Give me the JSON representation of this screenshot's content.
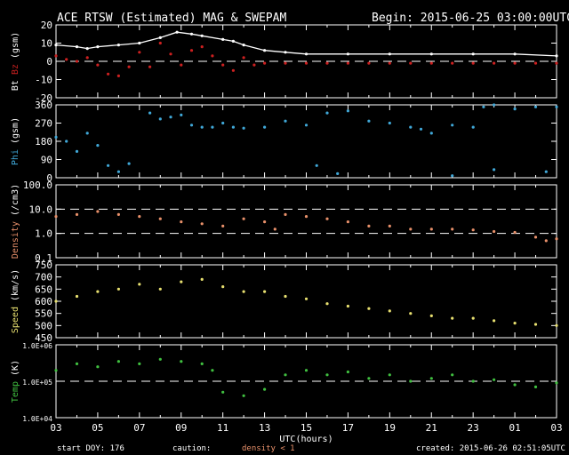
{
  "header": {
    "title": "ACE RTSW (Estimated) MAG & SWEPAM",
    "begin": "Begin: 2015-06-25 03:00:00UTC"
  },
  "footer": {
    "start_doy": "start DOY: 176",
    "caution_label": "caution:",
    "caution_text": "density < 1",
    "created": "created: 2015-06-26 02:51:05UTC"
  },
  "colors": {
    "background": "#000000",
    "axes": "#ffffff",
    "bt": "#ffffff",
    "bz": "#cc2020",
    "phi": "#40a8d8",
    "density": "#e8906a",
    "speed": "#e8e070",
    "temp": "#40c040",
    "caution": "#e8906a"
  },
  "chart_data": {
    "type": "scatter",
    "xlabel": "UTC(hours)",
    "x_ticks": [
      "03",
      "05",
      "07",
      "09",
      "11",
      "13",
      "15",
      "17",
      "19",
      "21",
      "23",
      "01",
      "03"
    ],
    "x_range_hours": [
      0,
      24
    ],
    "panels": [
      {
        "id": "mag",
        "ylabel_parts": [
          {
            "text": "Bt",
            "color": "#ffffff"
          },
          {
            "text": " ",
            "color": "#ffffff"
          },
          {
            "text": "Bz",
            "color": "#cc2020"
          },
          {
            "text": " (gsm)",
            "color": "#ffffff"
          }
        ],
        "scale": "linear",
        "ylim": [
          -20,
          20
        ],
        "ticks": [
          "20",
          "10",
          "0",
          "-10",
          "-20"
        ],
        "tick_values": [
          20,
          10,
          0,
          -10,
          -20
        ],
        "dashed_lines": [
          0
        ],
        "series": [
          {
            "name": "Bt",
            "color": "#ffffff",
            "style": "line",
            "points": [
              [
                0,
                9
              ],
              [
                1,
                8
              ],
              [
                1.5,
                7
              ],
              [
                2,
                8
              ],
              [
                3,
                9
              ],
              [
                4,
                10
              ],
              [
                5,
                13
              ],
              [
                5.8,
                16
              ],
              [
                6.5,
                15
              ],
              [
                7,
                14
              ],
              [
                8,
                12
              ],
              [
                8.5,
                11
              ],
              [
                9,
                9
              ],
              [
                10,
                6
              ],
              [
                11,
                5
              ],
              [
                12,
                4
              ],
              [
                14,
                4
              ],
              [
                16,
                4
              ],
              [
                18,
                4
              ],
              [
                20,
                4
              ],
              [
                22,
                4
              ],
              [
                24,
                3
              ]
            ]
          },
          {
            "name": "Bz",
            "color": "#cc2020",
            "style": "scatter",
            "points": [
              [
                0,
                3
              ],
              [
                0.5,
                1
              ],
              [
                1,
                0
              ],
              [
                1.5,
                2
              ],
              [
                2,
                -2
              ],
              [
                2.5,
                -7
              ],
              [
                3,
                -8
              ],
              [
                3.5,
                -3
              ],
              [
                4,
                5
              ],
              [
                4.5,
                -3
              ],
              [
                5,
                10
              ],
              [
                5.5,
                4
              ],
              [
                6,
                -2
              ],
              [
                6.5,
                6
              ],
              [
                7,
                8
              ],
              [
                7.5,
                3
              ],
              [
                8,
                -2
              ],
              [
                8.5,
                -5
              ],
              [
                9,
                2
              ],
              [
                9.5,
                -2
              ],
              [
                10,
                -1
              ],
              [
                11,
                -1
              ],
              [
                12,
                -1
              ],
              [
                13,
                -1
              ],
              [
                14,
                -1
              ],
              [
                15,
                -1
              ],
              [
                16,
                -1
              ],
              [
                17,
                -1
              ],
              [
                18,
                -1
              ],
              [
                19,
                -1
              ],
              [
                20,
                -1
              ],
              [
                21,
                -1
              ],
              [
                22,
                -1
              ],
              [
                23,
                -1
              ],
              [
                24,
                -1
              ]
            ]
          }
        ]
      },
      {
        "id": "phi",
        "ylabel_parts": [
          {
            "text": "Phi",
            "color": "#40a8d8"
          },
          {
            "text": " (gsm)",
            "color": "#ffffff"
          }
        ],
        "scale": "linear",
        "ylim": [
          0,
          360
        ],
        "ticks": [
          "360",
          "270",
          "180",
          "90",
          "0"
        ],
        "tick_values": [
          360,
          270,
          180,
          90,
          0
        ],
        "dashed_lines": [],
        "series": [
          {
            "name": "Phi",
            "color": "#40a8d8",
            "style": "scatter",
            "points": [
              [
                0,
                200
              ],
              [
                0.5,
                180
              ],
              [
                1,
                130
              ],
              [
                1.5,
                220
              ],
              [
                2,
                160
              ],
              [
                2.5,
                60
              ],
              [
                3,
                30
              ],
              [
                3.5,
                70
              ],
              [
                4.5,
                320
              ],
              [
                5,
                290
              ],
              [
                5.5,
                300
              ],
              [
                6,
                310
              ],
              [
                6.5,
                260
              ],
              [
                7,
                250
              ],
              [
                7.5,
                250
              ],
              [
                8,
                270
              ],
              [
                8.5,
                250
              ],
              [
                9,
                245
              ],
              [
                10,
                250
              ],
              [
                11,
                280
              ],
              [
                12,
                260
              ],
              [
                13,
                320
              ],
              [
                14,
                330
              ],
              [
                15,
                280
              ],
              [
                16,
                270
              ],
              [
                17,
                250
              ],
              [
                17.5,
                240
              ],
              [
                18,
                220
              ],
              [
                19,
                260
              ],
              [
                20,
                250
              ],
              [
                20.5,
                350
              ],
              [
                21,
                360
              ],
              [
                22,
                340
              ],
              [
                23,
                350
              ],
              [
                24,
                350
              ],
              [
                12.5,
                60
              ],
              [
                13.5,
                20
              ],
              [
                19,
                10
              ],
              [
                21,
                40
              ],
              [
                23.5,
                30
              ]
            ]
          }
        ]
      },
      {
        "id": "density",
        "ylabel_parts": [
          {
            "text": "Density",
            "color": "#e8906a"
          },
          {
            "text": " (/cm3)",
            "color": "#ffffff"
          }
        ],
        "scale": "log",
        "ylim": [
          0.1,
          100
        ],
        "ticks": [
          "100.0",
          "10.0",
          "1.0",
          "0.1"
        ],
        "tick_values": [
          100,
          10,
          1,
          0.1
        ],
        "dashed_lines": [
          10,
          1
        ],
        "series": [
          {
            "name": "Density",
            "color": "#e8906a",
            "style": "scatter",
            "points": [
              [
                0,
                5
              ],
              [
                1,
                6
              ],
              [
                2,
                8
              ],
              [
                3,
                6
              ],
              [
                4,
                5
              ],
              [
                5,
                4
              ],
              [
                6,
                3
              ],
              [
                7,
                2.5
              ],
              [
                8,
                2
              ],
              [
                9,
                4
              ],
              [
                10,
                3
              ],
              [
                10.5,
                1.5
              ],
              [
                11,
                6
              ],
              [
                12,
                5
              ],
              [
                13,
                4
              ],
              [
                14,
                3
              ],
              [
                15,
                2
              ],
              [
                16,
                2
              ],
              [
                17,
                1.5
              ],
              [
                18,
                1.5
              ],
              [
                19,
                1.5
              ],
              [
                20,
                1.4
              ],
              [
                21,
                1.2
              ],
              [
                22,
                1.1
              ],
              [
                23,
                0.7
              ],
              [
                23.5,
                0.5
              ],
              [
                24,
                0.6
              ]
            ]
          }
        ]
      },
      {
        "id": "speed",
        "ylabel_parts": [
          {
            "text": "Speed",
            "color": "#e8e070"
          },
          {
            "text": " (km/s)",
            "color": "#ffffff"
          }
        ],
        "scale": "linear",
        "ylim": [
          450,
          750
        ],
        "ticks": [
          "750",
          "700",
          "650",
          "600",
          "550",
          "500",
          "450"
        ],
        "tick_values": [
          750,
          700,
          650,
          600,
          550,
          500,
          450
        ],
        "dashed_lines": [],
        "series": [
          {
            "name": "Speed",
            "color": "#e8e070",
            "style": "scatter",
            "points": [
              [
                0,
                600
              ],
              [
                1,
                620
              ],
              [
                2,
                640
              ],
              [
                3,
                650
              ],
              [
                4,
                670
              ],
              [
                5,
                650
              ],
              [
                6,
                680
              ],
              [
                7,
                690
              ],
              [
                8,
                660
              ],
              [
                9,
                640
              ],
              [
                10,
                640
              ],
              [
                11,
                620
              ],
              [
                12,
                610
              ],
              [
                13,
                590
              ],
              [
                14,
                580
              ],
              [
                15,
                570
              ],
              [
                16,
                560
              ],
              [
                17,
                550
              ],
              [
                18,
                540
              ],
              [
                19,
                530
              ],
              [
                20,
                530
              ],
              [
                21,
                520
              ],
              [
                22,
                510
              ],
              [
                23,
                505
              ],
              [
                24,
                500
              ]
            ]
          }
        ]
      },
      {
        "id": "temp",
        "ylabel_parts": [
          {
            "text": "Temp",
            "color": "#40c040"
          },
          {
            "text": " (K)",
            "color": "#ffffff"
          }
        ],
        "scale": "log",
        "ylim": [
          10000,
          1000000
        ],
        "ticks": [
          "1.0E+06",
          "1.0E+05",
          "1.0E+04"
        ],
        "tick_values": [
          1000000,
          100000,
          10000
        ],
        "dashed_lines": [
          100000
        ],
        "series": [
          {
            "name": "Temp",
            "color": "#40c040",
            "style": "scatter",
            "points": [
              [
                0,
                200000
              ],
              [
                1,
                300000
              ],
              [
                2,
                250000
              ],
              [
                3,
                350000
              ],
              [
                4,
                300000
              ],
              [
                5,
                400000
              ],
              [
                6,
                350000
              ],
              [
                7,
                300000
              ],
              [
                7.5,
                200000
              ],
              [
                8,
                50000
              ],
              [
                9,
                40000
              ],
              [
                10,
                60000
              ],
              [
                11,
                150000
              ],
              [
                12,
                200000
              ],
              [
                13,
                150000
              ],
              [
                14,
                180000
              ],
              [
                15,
                120000
              ],
              [
                16,
                150000
              ],
              [
                17,
                100000
              ],
              [
                18,
                120000
              ],
              [
                19,
                150000
              ],
              [
                20,
                100000
              ],
              [
                21,
                110000
              ],
              [
                22,
                80000
              ],
              [
                23,
                70000
              ],
              [
                24,
                90000
              ]
            ]
          }
        ]
      }
    ]
  }
}
